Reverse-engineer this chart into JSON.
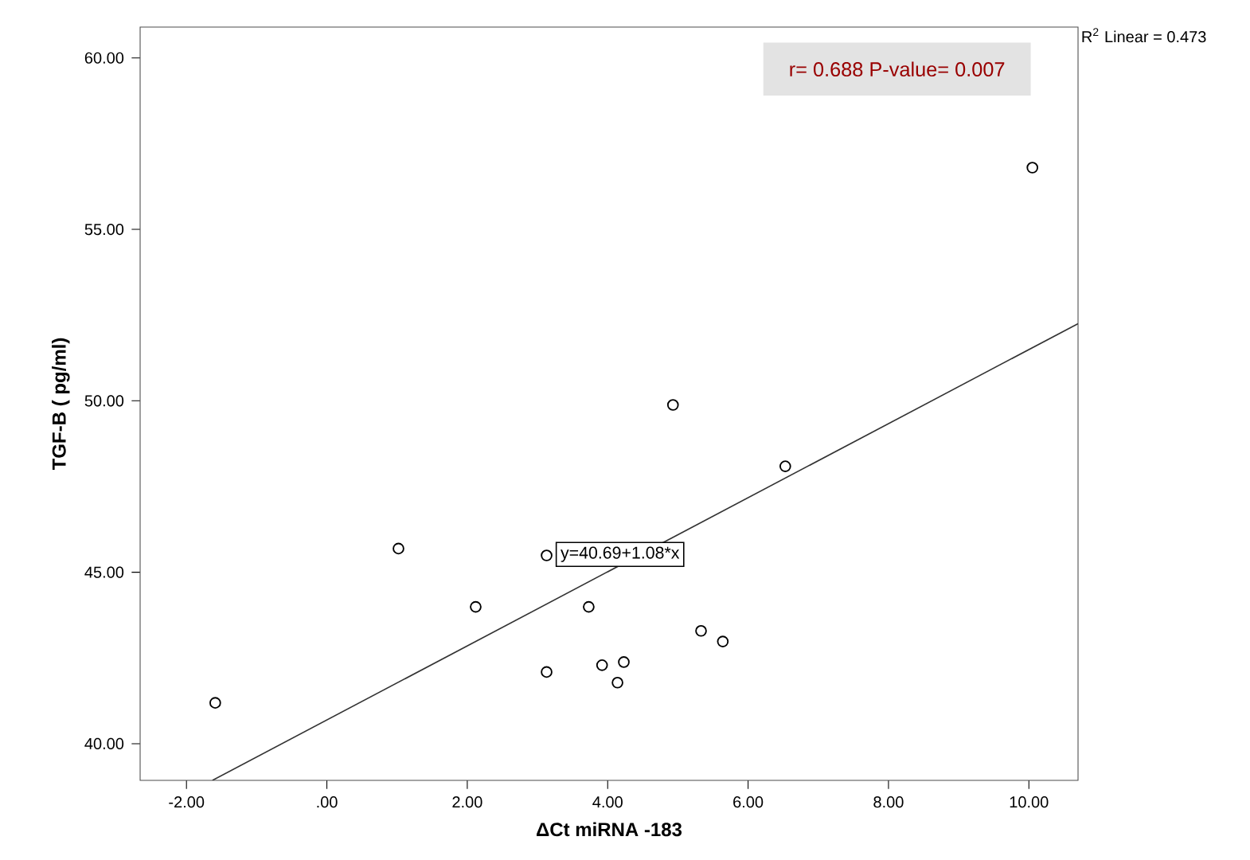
{
  "chart_data": {
    "type": "scatter",
    "xlabel": "ΔCt miRNA -183",
    "ylabel": "TGF-B ( pg/ml)",
    "xlim": [
      -2.66,
      10.7
    ],
    "ylim": [
      38.93,
      60.9
    ],
    "xticks": [
      {
        "value": -2,
        "label": "-2.00"
      },
      {
        "value": 0,
        "label": ".00"
      },
      {
        "value": 2,
        "label": "2.00"
      },
      {
        "value": 4,
        "label": "4.00"
      },
      {
        "value": 6,
        "label": "6.00"
      },
      {
        "value": 8,
        "label": "8.00"
      },
      {
        "value": 10,
        "label": "10.00"
      }
    ],
    "yticks": [
      {
        "value": 40,
        "label": "40.00"
      },
      {
        "value": 45,
        "label": "45.00"
      },
      {
        "value": 50,
        "label": "50.00"
      },
      {
        "value": 55,
        "label": "55.00"
      },
      {
        "value": 60,
        "label": "60.00"
      }
    ],
    "marker": "circle",
    "series": [
      {
        "color": "#000000",
        "x": [
          -1.59,
          1.02,
          2.12,
          3.13,
          3.13,
          3.73,
          3.92,
          4.14,
          4.23,
          4.93,
          5.33,
          5.64,
          6.53,
          10.05
        ],
        "values": [
          41.19,
          45.69,
          43.99,
          45.49,
          42.09,
          43.99,
          42.29,
          41.78,
          42.38,
          49.88,
          43.29,
          42.98,
          48.09,
          56.8
        ]
      },
      {
        "type": "line",
        "color": "#333333",
        "marker": "none",
        "x": [
          -1.63,
          10.7
        ],
        "values": [
          38.93,
          52.25
        ]
      }
    ],
    "annotations": [
      "r= 0.688    P-value= 0.007",
      "R$^{2}$ Linear = 0.473",
      "y=40.69+1.08*x"
    ]
  }
}
